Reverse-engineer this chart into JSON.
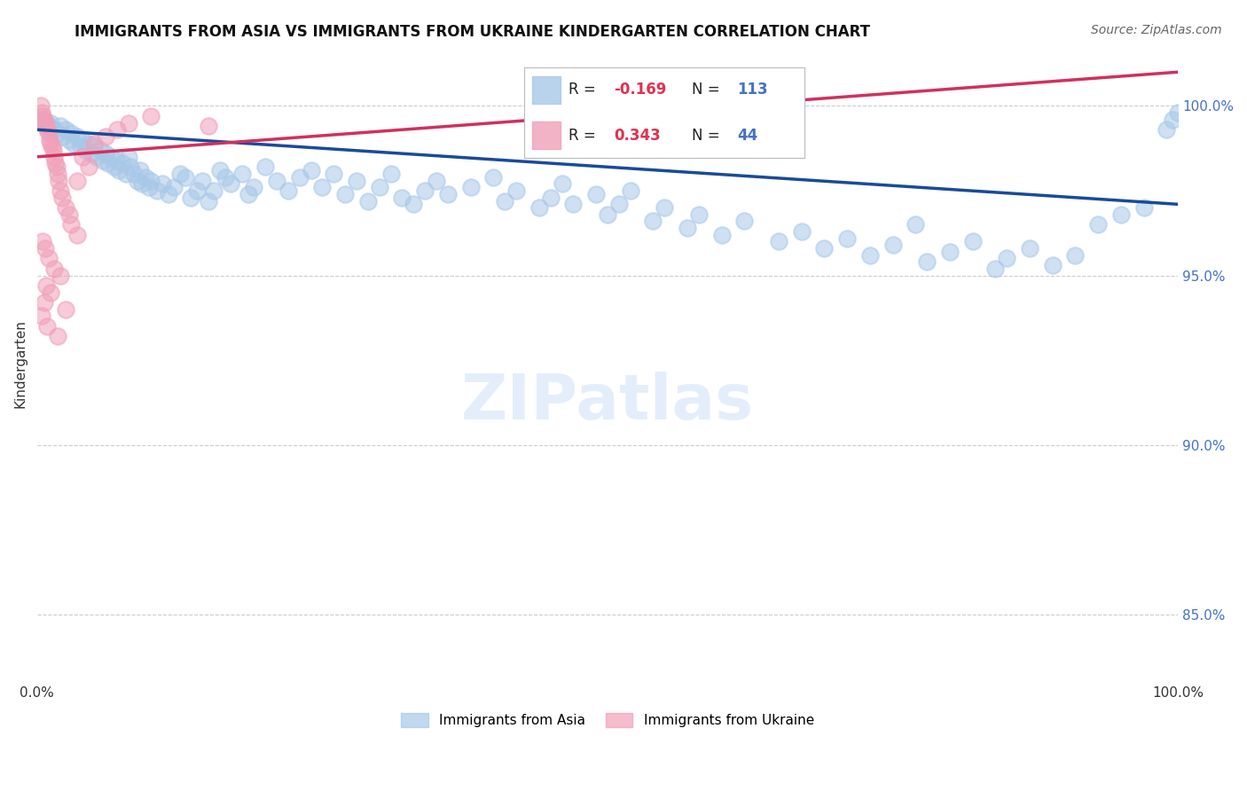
{
  "title": "IMMIGRANTS FROM ASIA VS IMMIGRANTS FROM UKRAINE KINDERGARTEN CORRELATION CHART",
  "source": "Source: ZipAtlas.com",
  "ylabel": "Kindergarten",
  "watermark": "ZIPatlas",
  "asia_r": -0.169,
  "asia_n": 113,
  "ukraine_r": 0.343,
  "ukraine_n": 44,
  "y_ticks": [
    85.0,
    90.0,
    95.0,
    100.0
  ],
  "x_lim": [
    0.0,
    100.0
  ],
  "y_lim": [
    83.0,
    101.8
  ],
  "asia_color": "#a8c8e8",
  "ukraine_color": "#f0a0b8",
  "asia_line_color": "#1a4a9a",
  "ukraine_line_color": "#d03060",
  "background_color": "#ffffff",
  "asia_trend": [
    0,
    100,
    99.3,
    97.1
  ],
  "ukraine_trend": [
    0,
    100,
    98.5,
    101.0
  ],
  "asia_points": [
    [
      0.5,
      99.6
    ],
    [
      0.8,
      99.5
    ],
    [
      1.0,
      99.4
    ],
    [
      1.2,
      99.5
    ],
    [
      1.5,
      99.3
    ],
    [
      1.8,
      99.2
    ],
    [
      2.0,
      99.4
    ],
    [
      2.2,
      99.1
    ],
    [
      2.5,
      99.3
    ],
    [
      2.8,
      99.0
    ],
    [
      3.0,
      99.2
    ],
    [
      3.2,
      98.9
    ],
    [
      3.5,
      99.1
    ],
    [
      3.8,
      98.8
    ],
    [
      4.0,
      99.0
    ],
    [
      4.2,
      98.7
    ],
    [
      4.5,
      98.9
    ],
    [
      4.8,
      98.6
    ],
    [
      5.0,
      98.8
    ],
    [
      5.2,
      98.5
    ],
    [
      5.5,
      98.7
    ],
    [
      5.8,
      98.4
    ],
    [
      6.0,
      98.6
    ],
    [
      6.2,
      98.3
    ],
    [
      6.5,
      98.5
    ],
    [
      6.8,
      98.2
    ],
    [
      7.0,
      98.4
    ],
    [
      7.2,
      98.1
    ],
    [
      7.5,
      98.3
    ],
    [
      7.8,
      98.0
    ],
    [
      8.0,
      98.5
    ],
    [
      8.2,
      98.2
    ],
    [
      8.5,
      98.0
    ],
    [
      8.8,
      97.8
    ],
    [
      9.0,
      98.1
    ],
    [
      9.2,
      97.7
    ],
    [
      9.5,
      97.9
    ],
    [
      9.8,
      97.6
    ],
    [
      10.0,
      97.8
    ],
    [
      10.5,
      97.5
    ],
    [
      11.0,
      97.7
    ],
    [
      11.5,
      97.4
    ],
    [
      12.0,
      97.6
    ],
    [
      12.5,
      98.0
    ],
    [
      13.0,
      97.9
    ],
    [
      13.5,
      97.3
    ],
    [
      14.0,
      97.5
    ],
    [
      14.5,
      97.8
    ],
    [
      15.0,
      97.2
    ],
    [
      15.5,
      97.5
    ],
    [
      16.0,
      98.1
    ],
    [
      16.5,
      97.9
    ],
    [
      17.0,
      97.7
    ],
    [
      18.0,
      98.0
    ],
    [
      18.5,
      97.4
    ],
    [
      19.0,
      97.6
    ],
    [
      20.0,
      98.2
    ],
    [
      21.0,
      97.8
    ],
    [
      22.0,
      97.5
    ],
    [
      23.0,
      97.9
    ],
    [
      24.0,
      98.1
    ],
    [
      25.0,
      97.6
    ],
    [
      26.0,
      98.0
    ],
    [
      27.0,
      97.4
    ],
    [
      28.0,
      97.8
    ],
    [
      29.0,
      97.2
    ],
    [
      30.0,
      97.6
    ],
    [
      31.0,
      98.0
    ],
    [
      32.0,
      97.3
    ],
    [
      33.0,
      97.1
    ],
    [
      34.0,
      97.5
    ],
    [
      35.0,
      97.8
    ],
    [
      36.0,
      97.4
    ],
    [
      38.0,
      97.6
    ],
    [
      40.0,
      97.9
    ],
    [
      41.0,
      97.2
    ],
    [
      42.0,
      97.5
    ],
    [
      44.0,
      97.0
    ],
    [
      45.0,
      97.3
    ],
    [
      46.0,
      97.7
    ],
    [
      47.0,
      97.1
    ],
    [
      49.0,
      97.4
    ],
    [
      50.0,
      96.8
    ],
    [
      51.0,
      97.1
    ],
    [
      52.0,
      97.5
    ],
    [
      54.0,
      96.6
    ],
    [
      55.0,
      97.0
    ],
    [
      57.0,
      96.4
    ],
    [
      58.0,
      96.8
    ],
    [
      60.0,
      96.2
    ],
    [
      62.0,
      96.6
    ],
    [
      65.0,
      96.0
    ],
    [
      67.0,
      96.3
    ],
    [
      69.0,
      95.8
    ],
    [
      71.0,
      96.1
    ],
    [
      73.0,
      95.6
    ],
    [
      75.0,
      95.9
    ],
    [
      77.0,
      96.5
    ],
    [
      78.0,
      95.4
    ],
    [
      80.0,
      95.7
    ],
    [
      82.0,
      96.0
    ],
    [
      84.0,
      95.2
    ],
    [
      85.0,
      95.5
    ],
    [
      87.0,
      95.8
    ],
    [
      89.0,
      95.3
    ],
    [
      91.0,
      95.6
    ],
    [
      93.0,
      96.5
    ],
    [
      95.0,
      96.8
    ],
    [
      97.0,
      97.0
    ],
    [
      99.0,
      99.3
    ],
    [
      99.5,
      99.6
    ],
    [
      100.0,
      99.8
    ]
  ],
  "ukraine_points": [
    [
      0.3,
      100.0
    ],
    [
      0.4,
      99.8
    ],
    [
      0.5,
      99.7
    ],
    [
      0.6,
      99.6
    ],
    [
      0.7,
      99.5
    ],
    [
      0.8,
      99.4
    ],
    [
      0.9,
      99.3
    ],
    [
      1.0,
      99.2
    ],
    [
      1.1,
      99.0
    ],
    [
      1.2,
      98.9
    ],
    [
      1.3,
      98.8
    ],
    [
      1.4,
      98.7
    ],
    [
      1.5,
      98.5
    ],
    [
      1.6,
      98.3
    ],
    [
      1.7,
      98.2
    ],
    [
      1.8,
      98.0
    ],
    [
      1.9,
      97.8
    ],
    [
      2.0,
      97.5
    ],
    [
      2.2,
      97.3
    ],
    [
      2.5,
      97.0
    ],
    [
      2.8,
      96.8
    ],
    [
      3.0,
      96.5
    ],
    [
      3.5,
      96.2
    ],
    [
      0.5,
      96.0
    ],
    [
      0.7,
      95.8
    ],
    [
      1.0,
      95.5
    ],
    [
      1.5,
      95.2
    ],
    [
      2.0,
      95.0
    ],
    [
      0.8,
      94.7
    ],
    [
      1.2,
      94.5
    ],
    [
      0.6,
      94.2
    ],
    [
      2.5,
      94.0
    ],
    [
      0.4,
      93.8
    ],
    [
      0.9,
      93.5
    ],
    [
      1.8,
      93.2
    ],
    [
      4.0,
      98.5
    ],
    [
      5.0,
      98.9
    ],
    [
      3.5,
      97.8
    ],
    [
      4.5,
      98.2
    ],
    [
      6.0,
      99.1
    ],
    [
      7.0,
      99.3
    ],
    [
      8.0,
      99.5
    ],
    [
      10.0,
      99.7
    ],
    [
      15.0,
      99.4
    ]
  ]
}
